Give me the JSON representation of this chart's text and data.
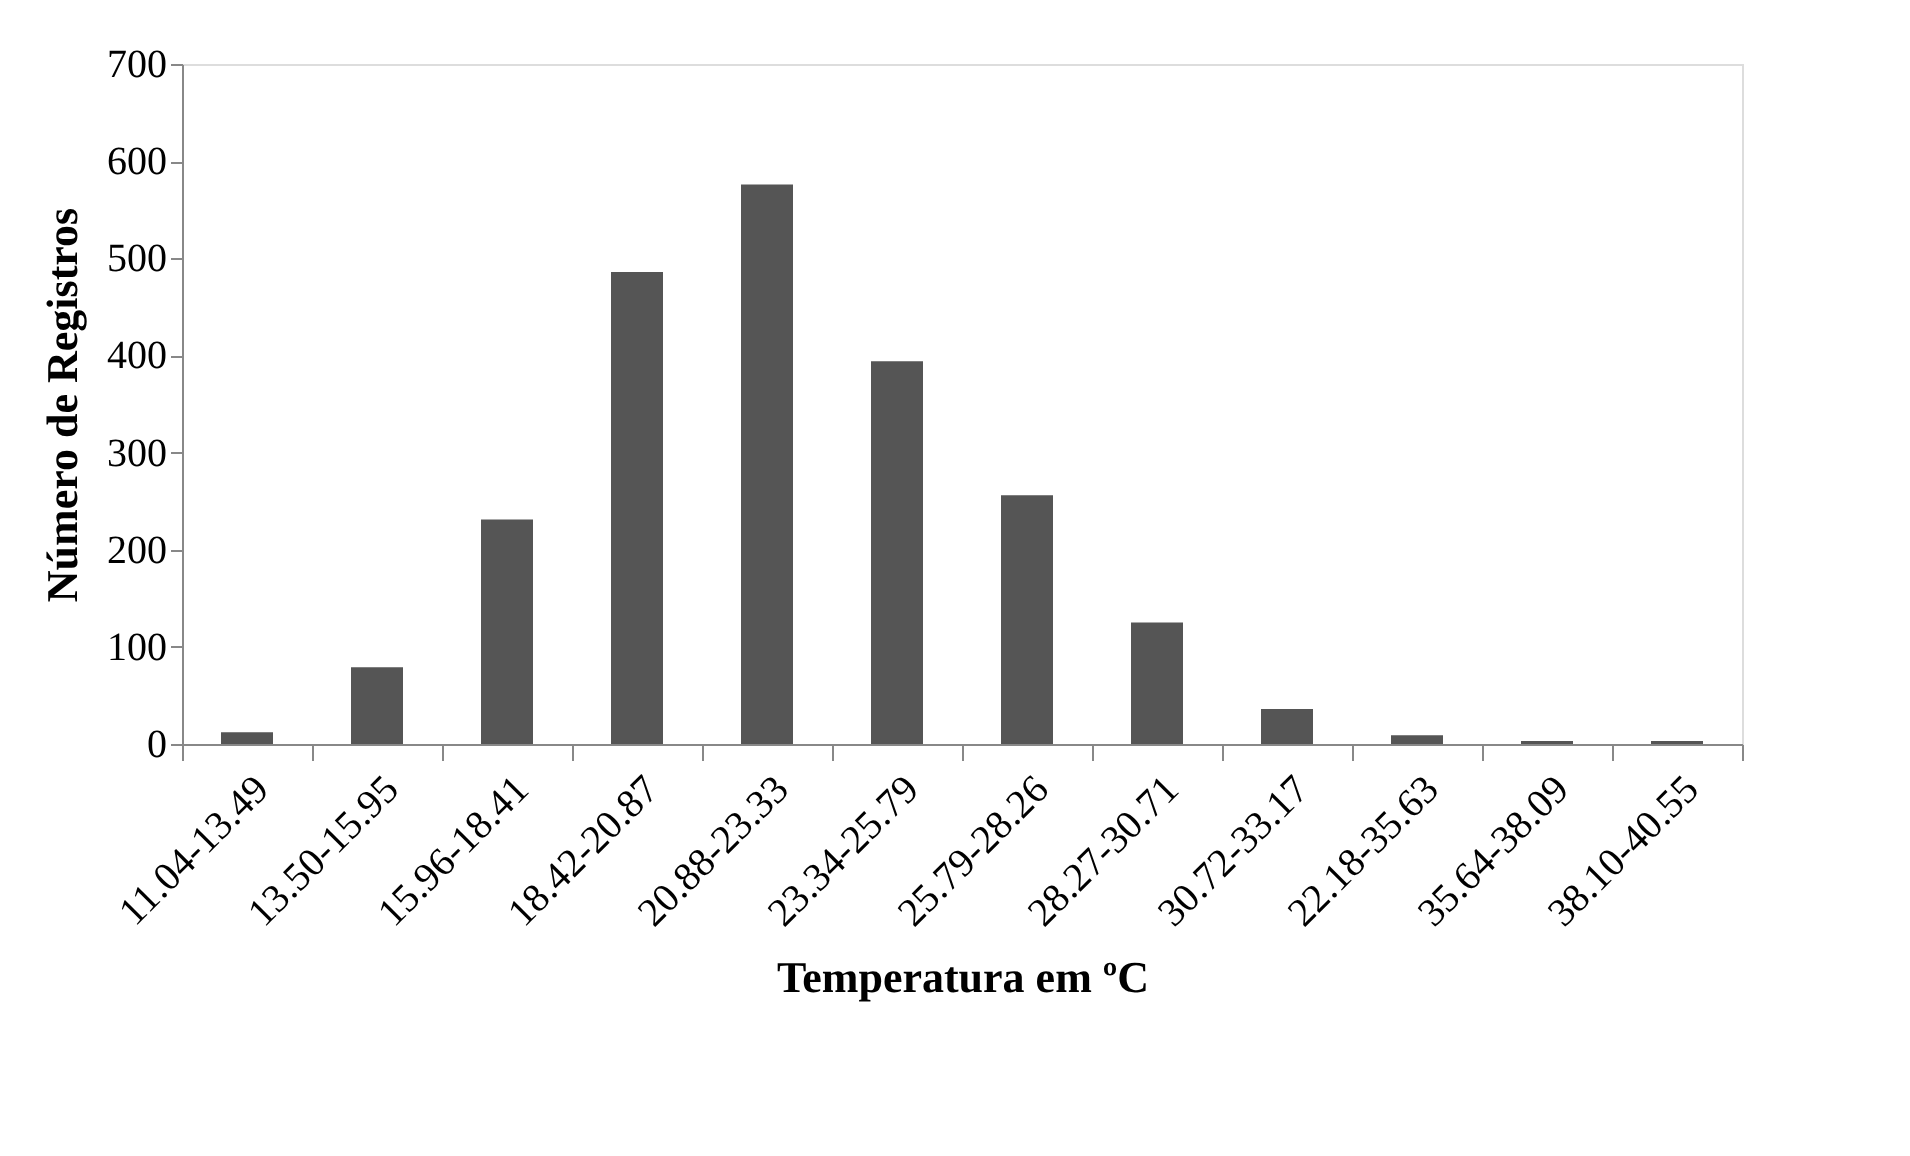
{
  "chart_data": {
    "type": "bar",
    "xlabel": "Temperatura em ºC",
    "ylabel": "Número de Registros",
    "categories": [
      "11.04-13.49",
      "13.50-15.95",
      "15.96-18.41",
      "18.42-20.87",
      "20.88-23.33",
      "23.34-25.79",
      "25.79-28.26",
      "28.27-30.71",
      "30.72-33.17",
      "22.18-35.63",
      "35.64-38.09",
      "38.10-40.55"
    ],
    "values": [
      12,
      79,
      231,
      486,
      576,
      394,
      256,
      125,
      36,
      9,
      3,
      3
    ],
    "color": "#555555",
    "ylim": [
      0,
      700
    ],
    "yticks": [
      0,
      100,
      200,
      300,
      400,
      500,
      600,
      700
    ],
    "grid": false
  }
}
